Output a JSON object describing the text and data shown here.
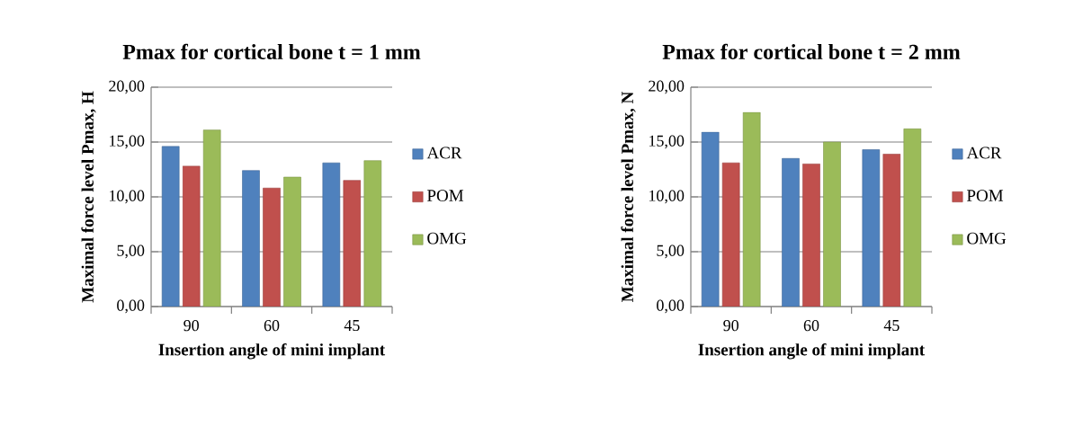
{
  "chart_data": [
    {
      "type": "bar",
      "title": "Pmax for cortical bone t = 1 mm",
      "xlabel": "Insertion angle of mini implant",
      "ylabel": "Maximal force level Pmax, H",
      "categories": [
        "90",
        "60",
        "45"
      ],
      "series": [
        {
          "name": "ACR",
          "color": "#4f81bd",
          "values": [
            14.6,
            12.4,
            13.1
          ]
        },
        {
          "name": "POM",
          "color": "#c0504d",
          "values": [
            12.8,
            10.8,
            11.5
          ]
        },
        {
          "name": "OMG",
          "color": "#9bbb59",
          "values": [
            16.1,
            11.8,
            13.3
          ]
        }
      ],
      "ylim": [
        0,
        20
      ],
      "yticks": [
        {
          "value": 0,
          "label": "0,00"
        },
        {
          "value": 5,
          "label": "5,00"
        },
        {
          "value": 10,
          "label": "10,00"
        },
        {
          "value": 15,
          "label": "15,00"
        },
        {
          "value": 20,
          "label": "20,00"
        }
      ],
      "grid": "y",
      "legend": "right"
    },
    {
      "type": "bar",
      "title": "Pmax for cortical bone t = 2 mm",
      "xlabel": "Insertion angle of mini implant",
      "ylabel": "Maximal force level Pmax, N",
      "categories": [
        "90",
        "60",
        "45"
      ],
      "series": [
        {
          "name": "ACR",
          "color": "#4f81bd",
          "values": [
            15.9,
            13.5,
            14.3
          ]
        },
        {
          "name": "POM",
          "color": "#c0504d",
          "values": [
            13.1,
            13.0,
            13.9
          ]
        },
        {
          "name": "OMG",
          "color": "#9bbb59",
          "values": [
            17.7,
            15.0,
            16.2
          ]
        }
      ],
      "ylim": [
        0,
        20
      ],
      "yticks": [
        {
          "value": 0,
          "label": "0,00"
        },
        {
          "value": 5,
          "label": "5,00"
        },
        {
          "value": 10,
          "label": "10,00"
        },
        {
          "value": 15,
          "label": "15,00"
        },
        {
          "value": 20,
          "label": "20,00"
        }
      ],
      "grid": "y",
      "legend": "right"
    }
  ]
}
